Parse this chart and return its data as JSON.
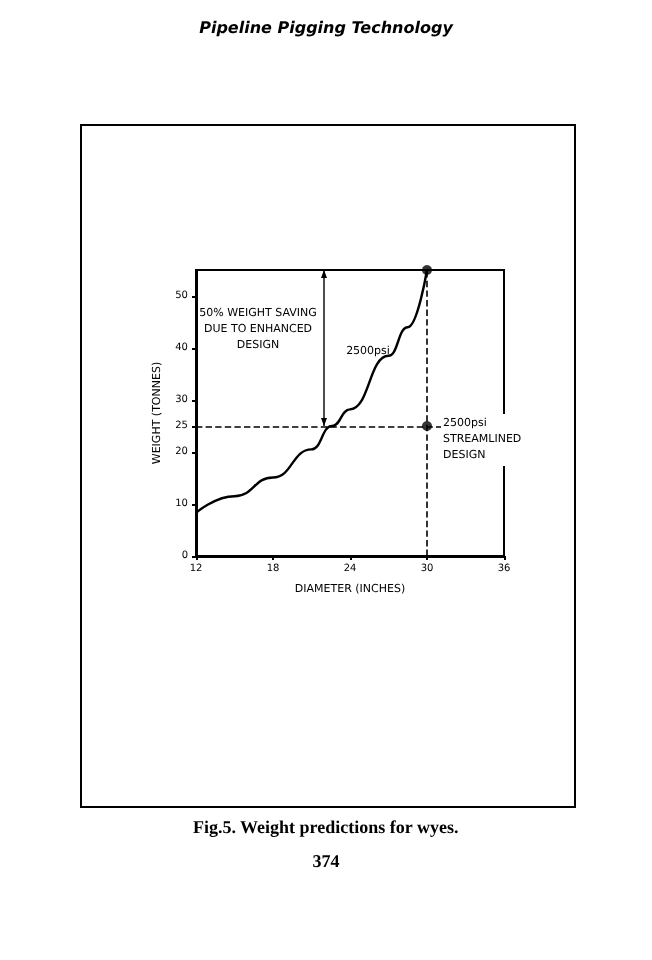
{
  "chart_data": {
    "type": "line",
    "title": "Fig.5. Weight predictions for wyes.",
    "xlabel": "DIAMETER (INCHES)",
    "ylabel": "WEIGHT (TONNES)",
    "xlim": [
      12,
      36
    ],
    "xticks": [
      12,
      18,
      24,
      30,
      36
    ],
    "ylim": [
      0,
      55
    ],
    "yticks": [
      0,
      10,
      20,
      25,
      30,
      40,
      50
    ],
    "series": [
      {
        "color": "#000000",
        "marker": "none",
        "x": [
          12,
          15,
          18,
          21,
          22.6,
          24,
          27,
          28.5,
          30
        ],
        "values": [
          8.3,
          11.5,
          15.1,
          20.5,
          25,
          28.2,
          38.5,
          44,
          55
        ]
      },
      {
        "type": "scatter",
        "color": "#000000",
        "marker": "circle",
        "x": [
          30,
          30
        ],
        "values": [
          55,
          25
        ]
      }
    ],
    "ref_lines": [
      {
        "axis": "y",
        "value": 25,
        "line_style": "dashed"
      },
      {
        "axis": "x",
        "value": 30,
        "line_style": "dashed"
      }
    ],
    "annotations": [
      "Pipeline Pigging Technology",
      "374",
      "50% WEIGHT SAVING\nDUE TO ENHANCED\nDESIGN",
      "2500psi",
      {
        "text": "2500psi\nSTREAMLINED\nDESIGN",
        "x": 30,
        "y": 25
      }
    ]
  }
}
